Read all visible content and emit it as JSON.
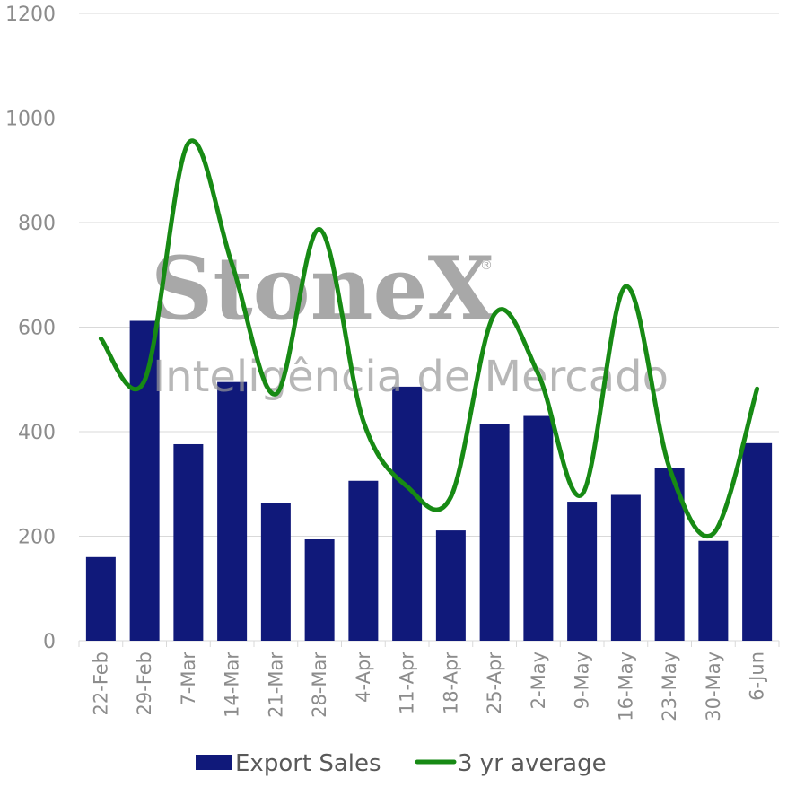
{
  "chart_data": {
    "type": "bar",
    "categories": [
      "22-Feb",
      "29-Feb",
      "7-Mar",
      "14-Mar",
      "21-Mar",
      "28-Mar",
      "4-Apr",
      "11-Apr",
      "18-Apr",
      "25-Apr",
      "2-May",
      "9-May",
      "16-May",
      "23-May",
      "30-May",
      "6-Jun"
    ],
    "series": [
      {
        "name": "Export Sales",
        "type": "bar",
        "color": "#10197a",
        "values": [
          160,
          612,
          376,
          495,
          264,
          194,
          306,
          486,
          211,
          414,
          430,
          266,
          279,
          330,
          191,
          378
        ]
      },
      {
        "name": "3 yr average",
        "type": "line",
        "color": "#178a14",
        "values": [
          578,
          498,
          952,
          720,
          472,
          787,
          420,
          295,
          275,
          625,
          510,
          280,
          678,
          330,
          205,
          482
        ]
      }
    ],
    "ylim": [
      0,
      1200
    ],
    "yticks": [
      0,
      200,
      400,
      600,
      800,
      1000,
      1200
    ],
    "grid": true,
    "legend_position": "bottom"
  },
  "watermark": {
    "brand": "StoneX",
    "registered": "®",
    "subtitle": "Inteligência de Mercado"
  }
}
